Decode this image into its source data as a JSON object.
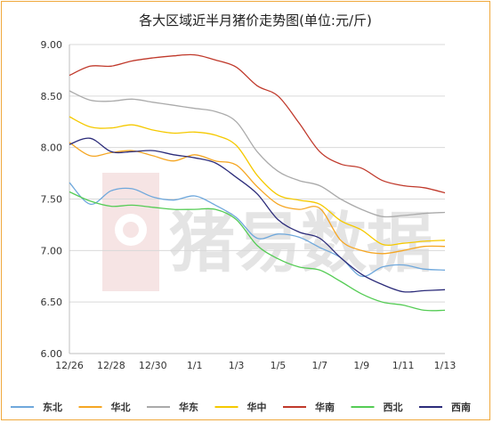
{
  "chart_data": {
    "type": "line",
    "title": "各大区域近半月猪价走势图(单位:元/斤)",
    "watermark": "猪易数据",
    "x": [
      "12/26",
      "12/27",
      "12/28",
      "12/29",
      "12/30",
      "12/31",
      "1/1",
      "1/2",
      "1/3",
      "1/4",
      "1/5",
      "1/6",
      "1/7",
      "1/8",
      "1/9",
      "1/10",
      "1/11",
      "1/12",
      "1/13"
    ],
    "x_tick_labels": [
      "12/26",
      "12/28",
      "12/30",
      "1/1",
      "1/3",
      "1/5",
      "1/7",
      "1/9",
      "1/11",
      "1/13"
    ],
    "ylim": [
      6.0,
      9.0
    ],
    "y_ticks": [
      "6.00",
      "6.50",
      "7.00",
      "7.50",
      "8.00",
      "8.50",
      "9.00"
    ],
    "grid": "horizontal",
    "legend_position": "bottom",
    "series": [
      {
        "name": "东北",
        "color": "#6fa8dc",
        "values": [
          7.66,
          7.45,
          7.58,
          7.6,
          7.52,
          7.49,
          7.53,
          7.44,
          7.32,
          7.12,
          7.16,
          7.13,
          7.03,
          6.93,
          6.75,
          6.84,
          6.86,
          6.82,
          6.81
        ]
      },
      {
        "name": "华北",
        "color": "#f5a623",
        "values": [
          8.05,
          7.92,
          7.95,
          7.97,
          7.92,
          7.87,
          7.93,
          7.87,
          7.83,
          7.62,
          7.45,
          7.4,
          7.41,
          7.1,
          7.0,
          6.97,
          7.0,
          7.04,
          7.04
        ]
      },
      {
        "name": "华东",
        "color": "#aaaaaa",
        "values": [
          8.55,
          8.46,
          8.45,
          8.47,
          8.44,
          8.41,
          8.38,
          8.35,
          8.25,
          7.96,
          7.77,
          7.68,
          7.63,
          7.5,
          7.4,
          7.33,
          7.34,
          7.36,
          7.37
        ]
      },
      {
        "name": "华中",
        "color": "#f5c900",
        "values": [
          8.3,
          8.2,
          8.19,
          8.22,
          8.17,
          8.14,
          8.15,
          8.12,
          8.02,
          7.73,
          7.54,
          7.49,
          7.45,
          7.29,
          7.2,
          7.06,
          7.07,
          7.09,
          7.1
        ]
      },
      {
        "name": "华南",
        "color": "#c0392b",
        "values": [
          8.7,
          8.79,
          8.79,
          8.84,
          8.87,
          8.89,
          8.9,
          8.85,
          8.78,
          8.6,
          8.5,
          8.24,
          7.96,
          7.84,
          7.8,
          7.68,
          7.63,
          7.61,
          7.56
        ]
      },
      {
        "name": "西北",
        "color": "#55cc55",
        "values": [
          7.57,
          7.48,
          7.43,
          7.44,
          7.42,
          7.4,
          7.4,
          7.4,
          7.3,
          7.05,
          6.92,
          6.84,
          6.81,
          6.7,
          6.58,
          6.5,
          6.47,
          6.42,
          6.42
        ]
      },
      {
        "name": "西南",
        "color": "#2c2c7a",
        "values": [
          8.03,
          8.09,
          7.96,
          7.96,
          7.97,
          7.93,
          7.9,
          7.85,
          7.71,
          7.55,
          7.3,
          7.18,
          7.12,
          6.93,
          6.77,
          6.67,
          6.6,
          6.61,
          6.62
        ]
      }
    ]
  }
}
